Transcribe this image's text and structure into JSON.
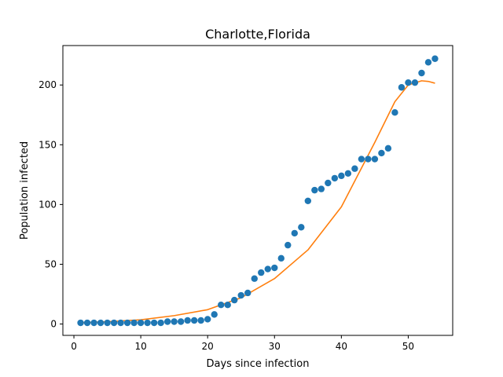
{
  "chart_data": {
    "type": "scatter",
    "title": "Charlotte,Florida",
    "xlabel": "Days since infection",
    "ylabel": "Population infected",
    "xlim": [
      -1.65,
      56.65
    ],
    "ylim": [
      -9.5,
      233
    ],
    "xticks": [
      0,
      10,
      20,
      30,
      40,
      50
    ],
    "yticks": [
      0,
      50,
      100,
      150,
      200
    ],
    "grid": false,
    "series": [
      {
        "type": "scatter",
        "color": "#1f77b4",
        "x": [
          1,
          2,
          3,
          4,
          5,
          6,
          7,
          8,
          9,
          10,
          11,
          12,
          13,
          14,
          15,
          16,
          17,
          18,
          19,
          20,
          21,
          22,
          23,
          24,
          25,
          26,
          27,
          28,
          29,
          30,
          31,
          32,
          33,
          34,
          35,
          36,
          37,
          38,
          39,
          40,
          41,
          42,
          43,
          44,
          45,
          46,
          47,
          48,
          49,
          50,
          51,
          52,
          53,
          54
        ],
        "y": [
          1,
          1,
          1,
          1,
          1,
          1,
          1,
          1,
          1,
          1,
          1,
          1,
          1,
          2,
          2,
          2,
          3,
          3,
          3,
          4,
          8,
          16,
          16,
          20,
          24,
          26,
          38,
          43,
          46,
          47,
          55,
          66,
          76,
          81,
          103,
          112,
          113,
          118,
          122,
          124,
          126,
          130,
          138,
          138,
          138,
          143,
          147,
          177,
          198,
          202,
          202,
          210,
          219,
          222
        ]
      },
      {
        "type": "line",
        "color": "#ff7f0e",
        "x": [
          1,
          5,
          10,
          15,
          20,
          25,
          30,
          35,
          40,
          45,
          48,
          50,
          52,
          53,
          54
        ],
        "y": [
          1,
          2,
          3.5,
          7,
          12,
          22,
          38,
          62,
          98,
          152,
          186,
          200,
          203.5,
          203,
          201.5
        ]
      }
    ]
  }
}
